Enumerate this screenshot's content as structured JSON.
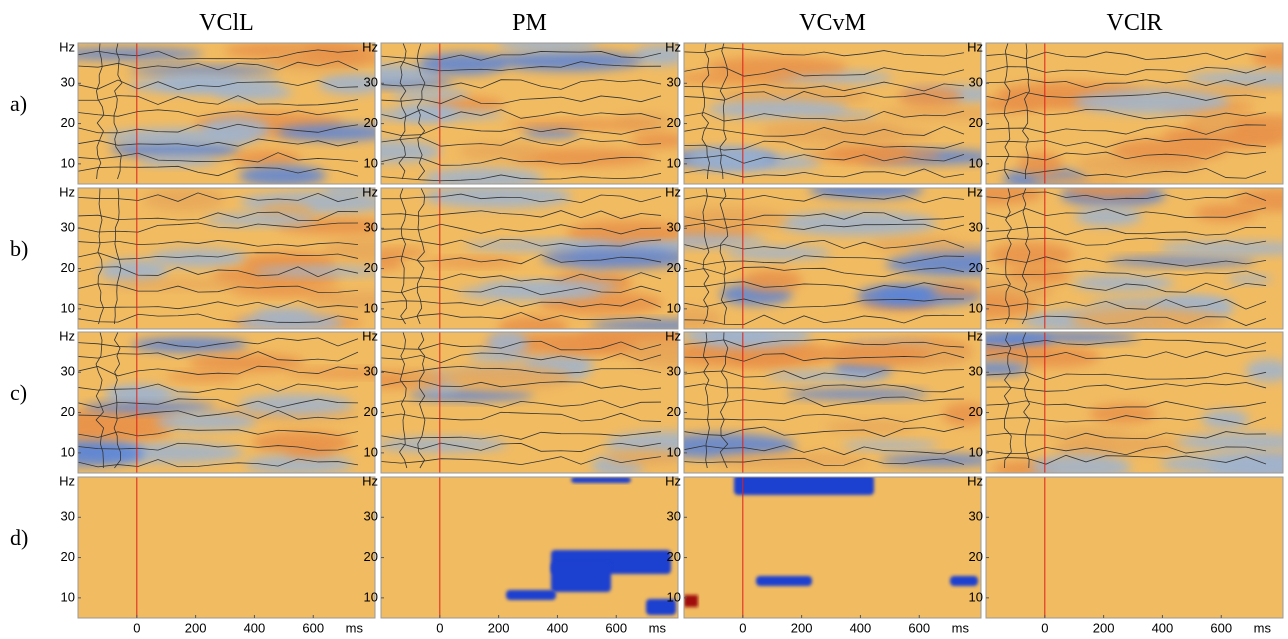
{
  "chart_data": {
    "type": "heatmap",
    "columns": [
      "VClL",
      "PM",
      "VCvM",
      "VClR"
    ],
    "rows": [
      "a)",
      "b)",
      "c)",
      "d)"
    ],
    "x_unit": "ms",
    "y_unit": "Hz",
    "xlim": [
      -200,
      810
    ],
    "xticks": [
      0,
      200,
      400,
      600
    ],
    "ylim": [
      5,
      40
    ],
    "yticks": [
      10,
      20,
      30
    ]
  }
}
